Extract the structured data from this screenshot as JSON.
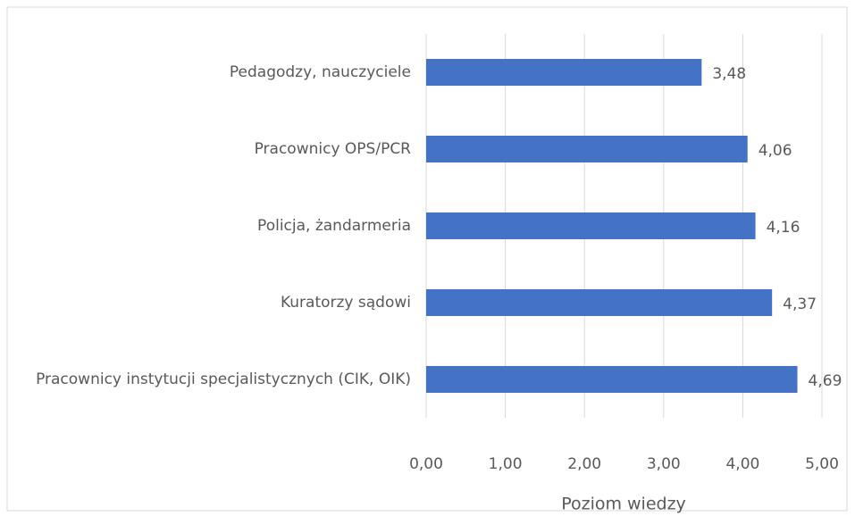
{
  "chart_data": {
    "type": "bar",
    "orientation": "horizontal",
    "categories": [
      "Pedagodzy, nauczyciele",
      "Pracownicy OPS/PCR",
      "Policja, żandarmeria",
      "Kuratorzy sądowi",
      "Pracownicy instytucji specjalistycznych (CIK, OIK)"
    ],
    "values": [
      3.48,
      4.06,
      4.16,
      4.37,
      4.69
    ],
    "value_labels": [
      "3,48",
      "4,06",
      "4,16",
      "4,37",
      "4,69"
    ],
    "color": "#4472c4",
    "x_label": "Poziom wiedzy",
    "xlim": [
      0,
      5
    ],
    "xticks": [
      {
        "value": 0,
        "label": "0,00"
      },
      {
        "value": 1,
        "label": "1,00"
      },
      {
        "value": 2,
        "label": "2,00"
      },
      {
        "value": 3,
        "label": "3,00"
      },
      {
        "value": 4,
        "label": "4,00"
      },
      {
        "value": 5,
        "label": "5,00"
      }
    ],
    "grid": true
  }
}
